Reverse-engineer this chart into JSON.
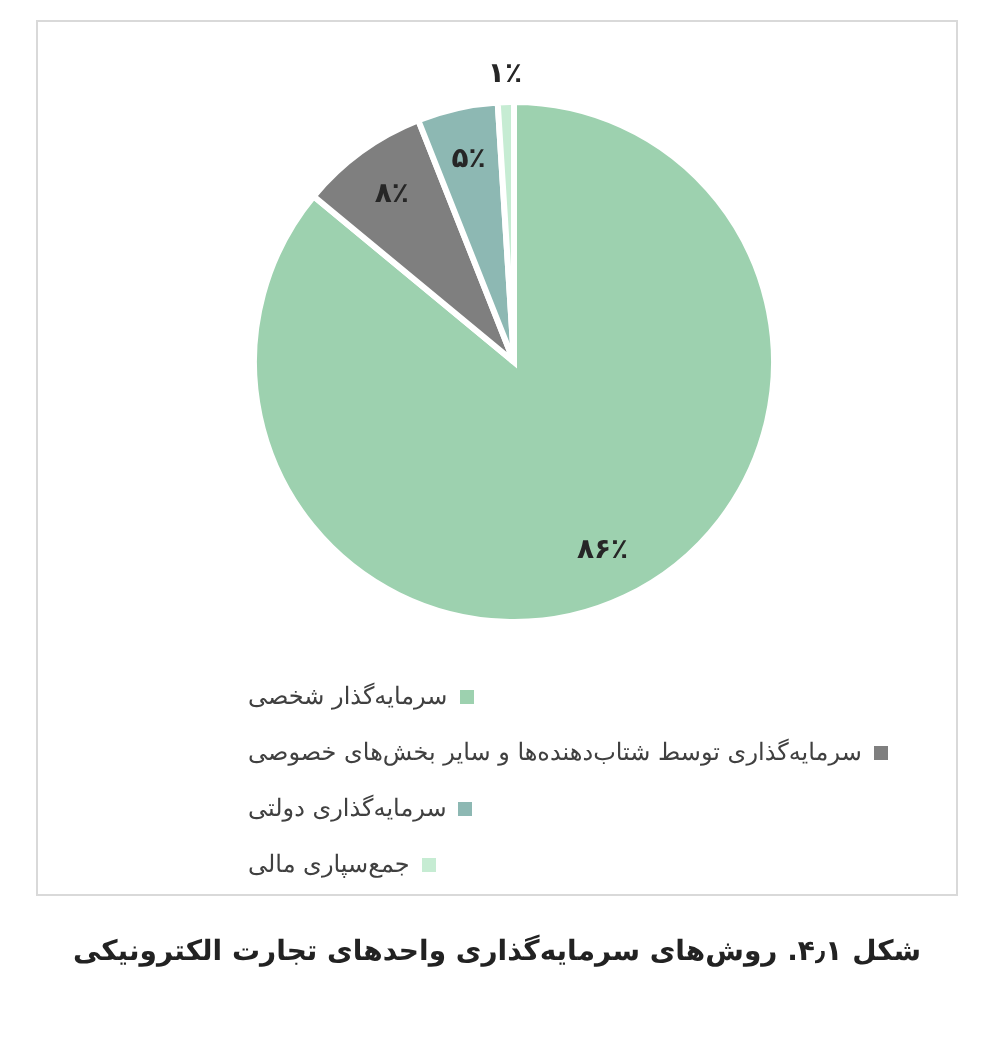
{
  "chart_data": {
    "type": "pie",
    "title": "شکل ۴٫۱. روش‌های سرمایه‌گذاری واحدهای تجارت الکترونیکی",
    "categories": [
      "سرمایه‌گذار شخصی",
      "سرمایه‌گذاری توسط شتاب‌دهنده‌ها و سایر بخش‌های خصوصی",
      "سرمایه‌گذاری دولتی",
      "جمع‌سپاری مالی"
    ],
    "values": [
      86,
      8,
      5,
      1
    ],
    "colors": [
      "#9dd1af",
      "#7f7f7f",
      "#8db8b3",
      "#c6ecd3"
    ],
    "value_labels": [
      "۸۶٪",
      "۸٪",
      "۵٪",
      "۱٪"
    ],
    "legend": "bottom"
  }
}
